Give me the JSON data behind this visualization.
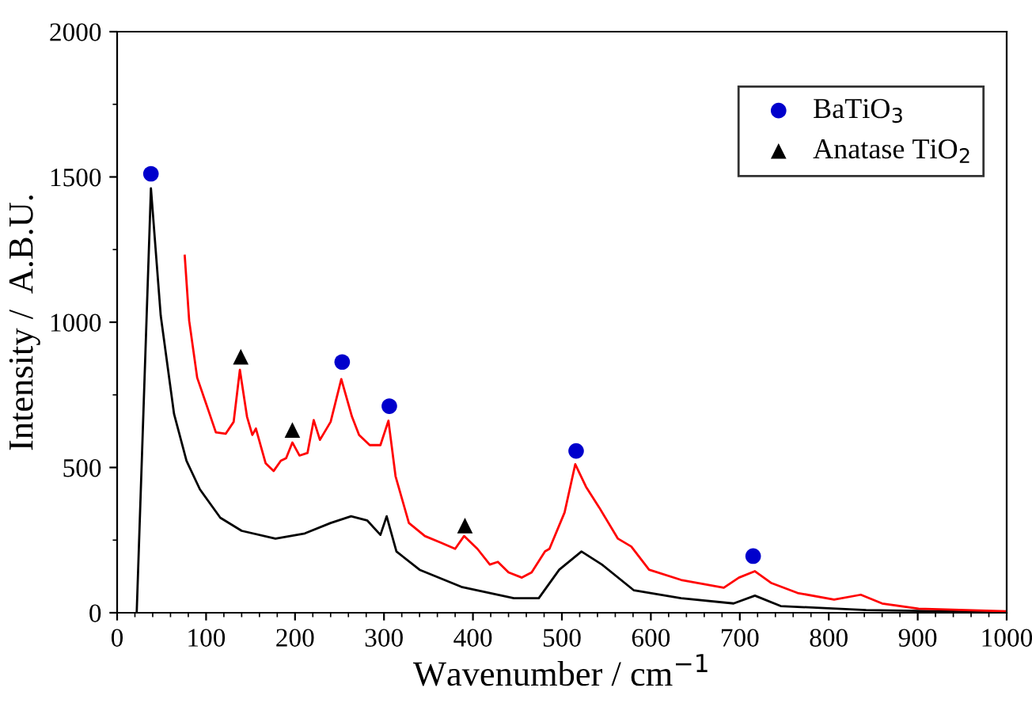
{
  "chart_data": {
    "type": "line",
    "xlabel": "Wavenumber / cm$^{−1}$",
    "ylabel": "Intensity /  A.B.U.",
    "xlim": [
      0,
      1000
    ],
    "ylim": [
      0,
      2000
    ],
    "xticks": [
      0,
      100,
      200,
      300,
      400,
      500,
      600,
      700,
      800,
      900,
      1000
    ],
    "yticks": [
      0,
      500,
      1000,
      1500,
      2000
    ],
    "grid": false,
    "legend": "top right",
    "series": [
      {
        "color": "#000000",
        "x": [
          22,
          38,
          49,
          64,
          78,
          93,
          116,
          140,
          178,
          211,
          240,
          263,
          281,
          296,
          303,
          314,
          340,
          387,
          446,
          474,
          497,
          522,
          545,
          581,
          634,
          693,
          717,
          746,
          842,
          999
        ],
        "values": [
          0,
          1461,
          1023,
          684,
          523,
          425,
          327,
          282,
          255,
          273,
          309,
          332,
          318,
          268,
          332,
          211,
          148,
          89,
          50,
          50,
          148,
          211,
          166,
          77,
          50,
          32,
          59,
          23,
          9,
          2
        ]
      },
      {
        "color": "#ff0000",
        "x": [
          76,
          81,
          90,
          102,
          111,
          122,
          131,
          138,
          146,
          152,
          156,
          167,
          176,
          184,
          190,
          197,
          205,
          214,
          221,
          228,
          240,
          252,
          264,
          272,
          284,
          296,
          305,
          313,
          328,
          346,
          364,
          380,
          390,
          405,
          419,
          428,
          440,
          455,
          466,
          481,
          486,
          503,
          515,
          527,
          542,
          563,
          578,
          598,
          634,
          682,
          699,
          717,
          735,
          765,
          806,
          836,
          860,
          901,
          999
        ],
        "values": [
          1229,
          1005,
          809,
          702,
          621,
          616,
          657,
          836,
          675,
          612,
          634,
          514,
          488,
          523,
          532,
          586,
          541,
          550,
          663,
          595,
          657,
          804,
          675,
          612,
          577,
          577,
          661,
          470,
          309,
          264,
          241,
          220,
          264,
          220,
          166,
          175,
          139,
          121,
          139,
          211,
          220,
          345,
          511,
          434,
          362,
          255,
          228,
          148,
          113,
          86,
          121,
          143,
          103,
          68,
          45,
          62,
          32,
          14,
          5
        ]
      },
      {
        "type": "scatter",
        "name": "BaTiO$_{3}$",
        "color": "#0000cc",
        "marker": "circle",
        "x": [
          38,
          253,
          306,
          516,
          715
        ],
        "values": [
          1511,
          863,
          711,
          557,
          195
        ]
      },
      {
        "type": "scatter",
        "name": "Anatase TiO$_{2}$",
        "color": "#000000",
        "marker": "triangle",
        "x": [
          139,
          197,
          391
        ],
        "values": [
          881,
          629,
          300
        ]
      }
    ]
  }
}
